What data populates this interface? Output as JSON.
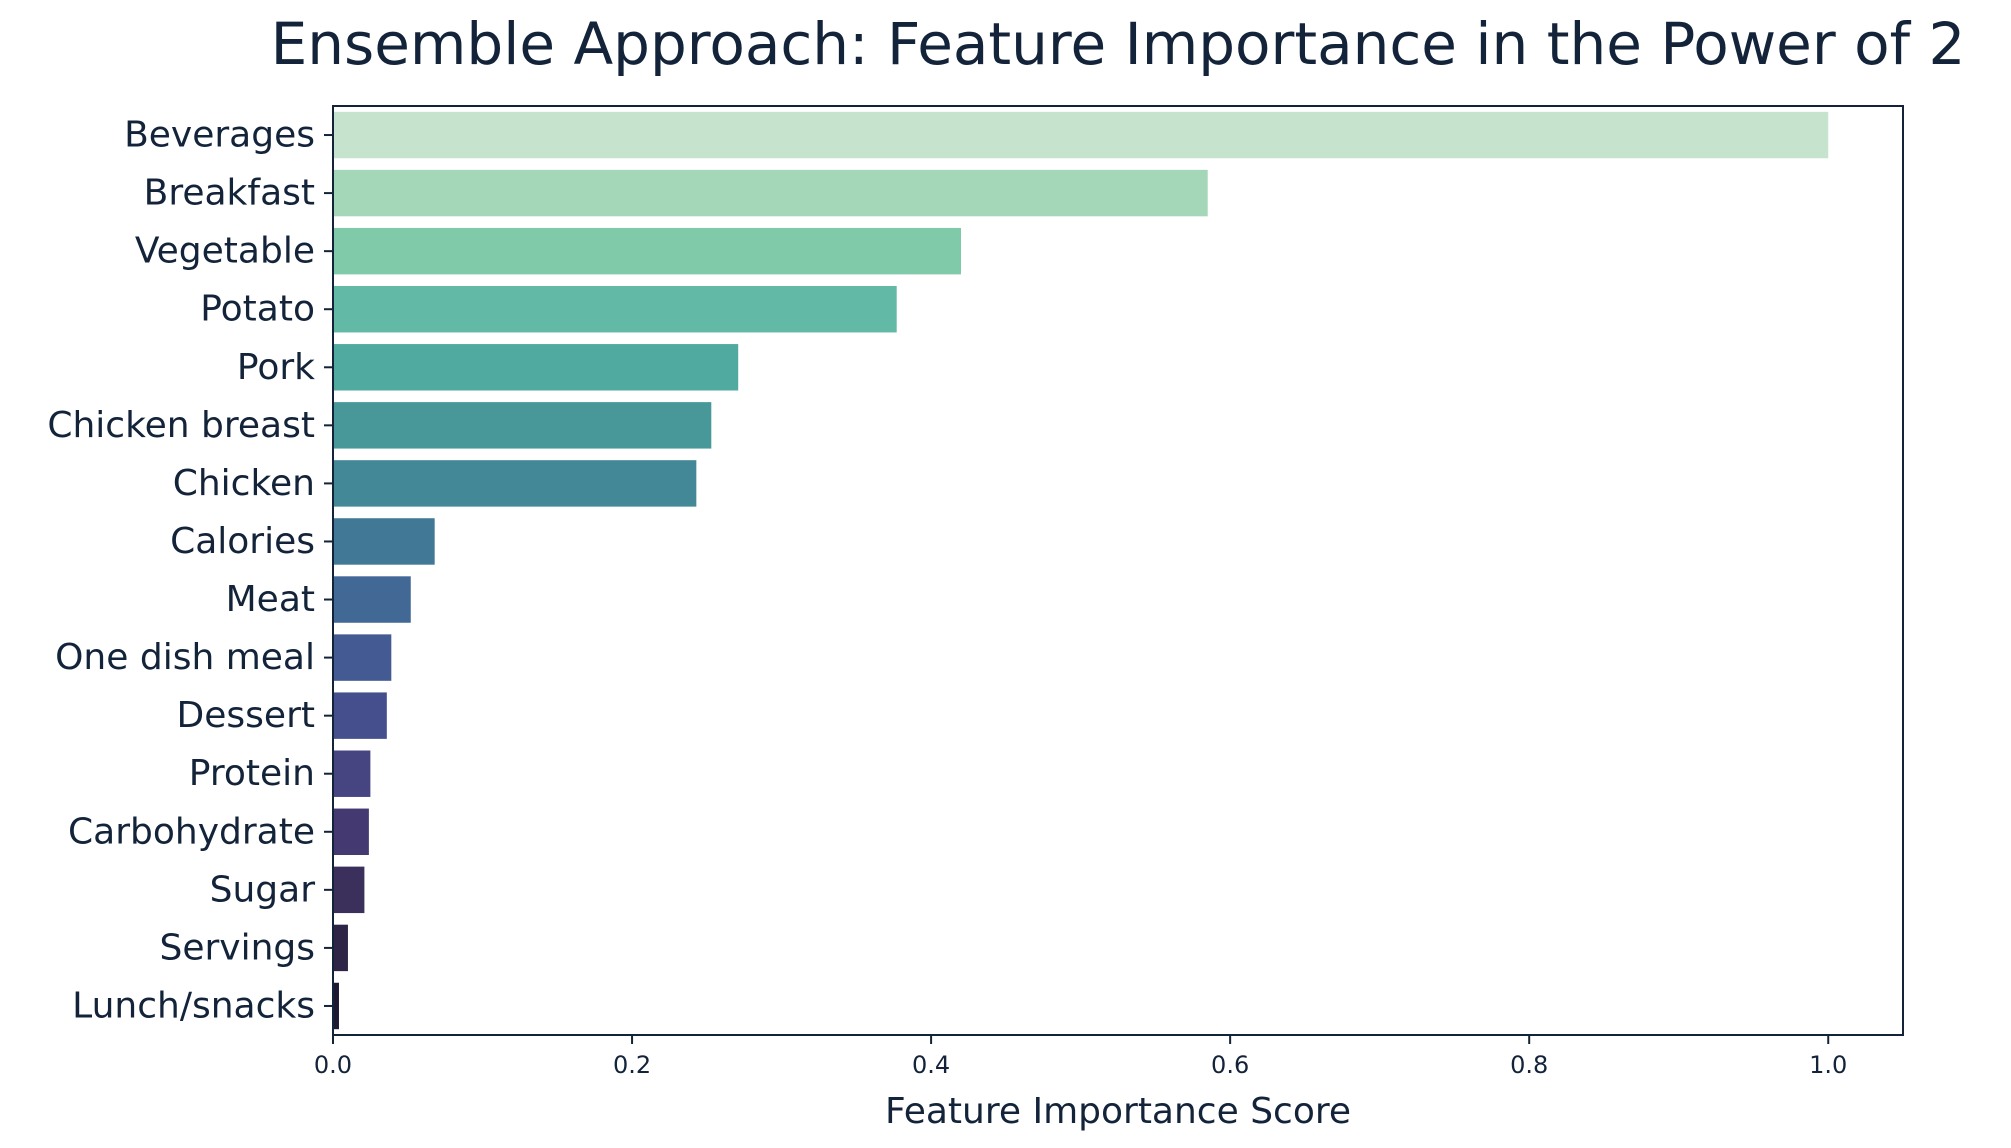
{
  "chart_data": {
    "type": "bar",
    "orientation": "horizontal",
    "title": "Ensemble Approach: Feature Importance in the Power of 2",
    "xlabel": "Feature Importance Score",
    "ylabel": "",
    "xlim": [
      0,
      1.05
    ],
    "xticks": [
      "0.0",
      "0.2",
      "0.4",
      "0.6",
      "0.8",
      "1.0"
    ],
    "grid": false,
    "legend": "none",
    "categories": [
      "Beverages",
      "Breakfast",
      "Vegetable",
      "Potato",
      "Pork",
      "Chicken breast",
      "Chicken",
      "Calories",
      "Meat",
      "One dish meal",
      "Dessert",
      "Protein",
      "Carbohydrate",
      "Sugar",
      "Servings",
      "Lunch/snacks"
    ],
    "values": [
      1.0,
      0.585,
      0.42,
      0.377,
      0.271,
      0.253,
      0.243,
      0.068,
      0.052,
      0.039,
      0.036,
      0.025,
      0.024,
      0.021,
      0.01,
      0.004
    ],
    "colors": [
      "#c6e4cd",
      "#a4d6b8",
      "#80caa9",
      "#62b9a5",
      "#51aaa0",
      "#489899",
      "#428896",
      "#417895",
      "#426895",
      "#445a92",
      "#464f8d",
      "#474482",
      "#443a71",
      "#3b2f5c",
      "#2e2446",
      "#1e1932"
    ]
  }
}
